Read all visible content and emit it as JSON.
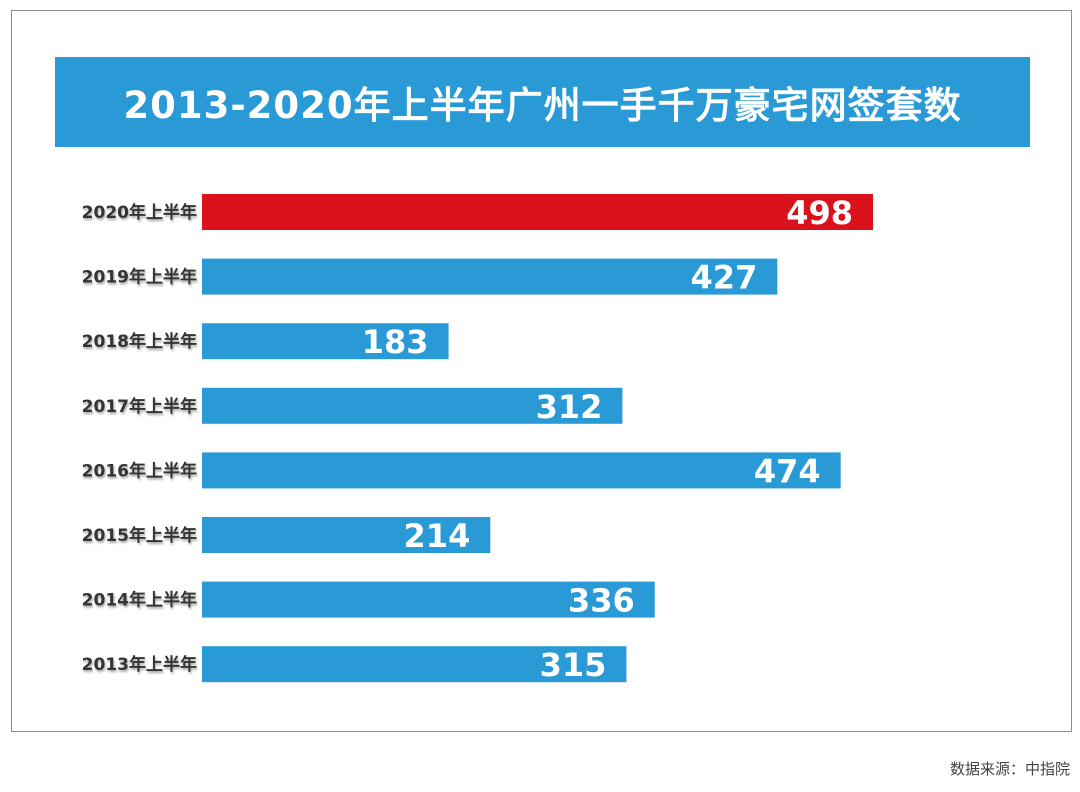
{
  "chart_data": {
    "type": "bar",
    "orientation": "horizontal",
    "title": "2013-2020年上半年广州一手千万豪宅网签套数",
    "categories": [
      "2020年上半年",
      "2019年上半年",
      "2018年上半年",
      "2017年上半年",
      "2016年上半年",
      "2015年上半年",
      "2014年上半年",
      "2013年上半年"
    ],
    "values": [
      498,
      427,
      183,
      312,
      474,
      214,
      336,
      315
    ],
    "highlight_index": 0,
    "colors": {
      "default": "#2a9ad6",
      "highlight": "#d9121c"
    },
    "xlabel": "",
    "ylabel": "",
    "xlim": [
      0,
      498
    ],
    "grid": false
  },
  "source": "数据来源：中指院"
}
